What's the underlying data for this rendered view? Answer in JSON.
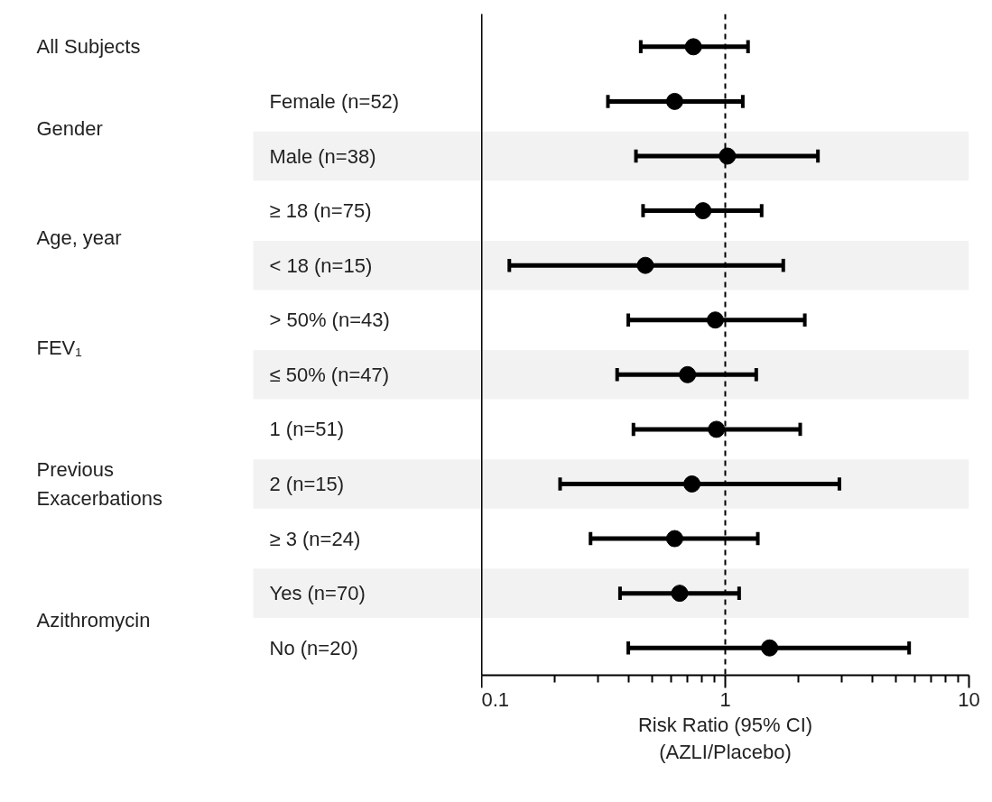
{
  "chart_data": {
    "type": "scatter",
    "orientation": "horizontal",
    "xlabel": "Risk Ratio (95% CI)\n(AZLI/Placebo)",
    "categories": [
      null,
      "Female (n=52)",
      "Male (n=38)",
      "≥ 18 (n=75)",
      "< 18 (n=15)",
      "> 50% (n=43)",
      "≤ 50% (n=47)",
      "1 (n=51)",
      "2 (n=15)",
      "≥ 3 (n=24)",
      "Yes (n=70)",
      "No (n=20)"
    ],
    "values": [
      0.74,
      0.62,
      1.02,
      0.81,
      0.47,
      0.91,
      0.7,
      0.92,
      0.73,
      0.62,
      0.65,
      1.52
    ],
    "errors": [
      [
        0.45,
        1.24
      ],
      [
        0.33,
        1.18
      ],
      [
        0.43,
        2.4
      ],
      [
        0.46,
        1.41
      ],
      [
        0.13,
        1.73
      ],
      [
        0.4,
        2.12
      ],
      [
        0.36,
        1.34
      ],
      [
        0.42,
        2.03
      ],
      [
        0.21,
        2.94
      ],
      [
        0.28,
        1.36
      ],
      [
        0.37,
        1.14
      ],
      [
        0.4,
        5.68
      ]
    ],
    "color": "#000000",
    "marker": "circle",
    "log": "x",
    "xlim": [
      0.1,
      10
    ],
    "xticks": [
      0.1,
      1,
      10
    ],
    "grid": false,
    "annotations": [
      "All Subjects",
      "Gender",
      "Age, year",
      "FEV₁",
      "Previous\nExacerbations",
      "Azithromycin"
    ],
    "ref_lines": [
      {
        "axis": "x",
        "value": 1,
        "label": null,
        "color": "#000000",
        "line_style": "dashed"
      }
    ],
    "bands": [
      {
        "axis": "y",
        "from": "Male (n=38)",
        "to": "Male (n=38)",
        "color": "#f2f2f2"
      },
      {
        "axis": "y",
        "from": "< 18 (n=15)",
        "to": "< 18 (n=15)",
        "color": "#f2f2f2"
      },
      {
        "axis": "y",
        "from": "≤ 50% (n=47)",
        "to": "≤ 50% (n=47)",
        "color": "#f2f2f2"
      },
      {
        "axis": "y",
        "from": "2 (n=15)",
        "to": "2 (n=15)",
        "color": "#f2f2f2"
      },
      {
        "axis": "y",
        "from": "Yes (n=70)",
        "to": "Yes (n=70)",
        "color": "#f2f2f2"
      }
    ]
  }
}
